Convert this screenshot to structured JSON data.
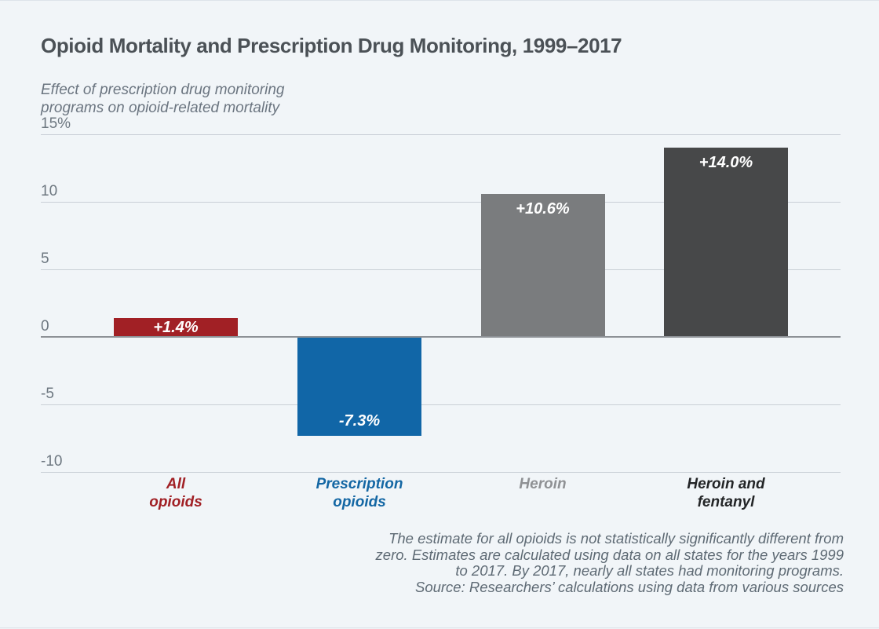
{
  "page": {
    "background": "#f1f5f8"
  },
  "header": {
    "title": "Opioid Mortality and Prescription Drug Monitoring, 1999–2017",
    "subtitle_line1": "Effect of prescription drug monitoring",
    "subtitle_line2": "programs on opioid-related mortality"
  },
  "chart_data": {
    "type": "bar",
    "title": "Opioid Mortality and Prescription Drug Monitoring, 1999–2017",
    "ylabel": "Effect of prescription drug monitoring programs on opioid-related mortality",
    "categories": [
      "All\nopioids",
      "Prescription\nopioids",
      "Heroin",
      "Heroin and\nfentanyl"
    ],
    "values": [
      1.4,
      -7.3,
      10.6,
      14.0
    ],
    "bar_labels": [
      "+1.4%",
      "-7.3%",
      "+10.6%",
      "+14.0%"
    ],
    "bar_colors": [
      "#a12025",
      "#1166a7",
      "#7a7c7e",
      "#474849"
    ],
    "category_label_colors": [
      "#a12025",
      "#1467a4",
      "#8f9194",
      "#232527"
    ],
    "value_label_color": "#ffffff",
    "yticks": [
      15,
      10,
      5,
      0,
      -5,
      -10
    ],
    "ytick_labels": [
      "15%",
      "10",
      "5",
      "0",
      "-5",
      "-10"
    ],
    "ylim": [
      -10,
      15
    ],
    "grid": true,
    "legend": "none",
    "gridline_color": "#c9cfd6",
    "zeroline_color": "#8d9196"
  },
  "footer": {
    "lines": [
      "The estimate for all opioids is not statistically significantly different from",
      "zero. Estimates are calculated using data on all states for the years 1999",
      "to 2017. By 2017, nearly all states had monitoring programs.",
      "Source: Researchers’ calculations using data from various sources"
    ]
  }
}
